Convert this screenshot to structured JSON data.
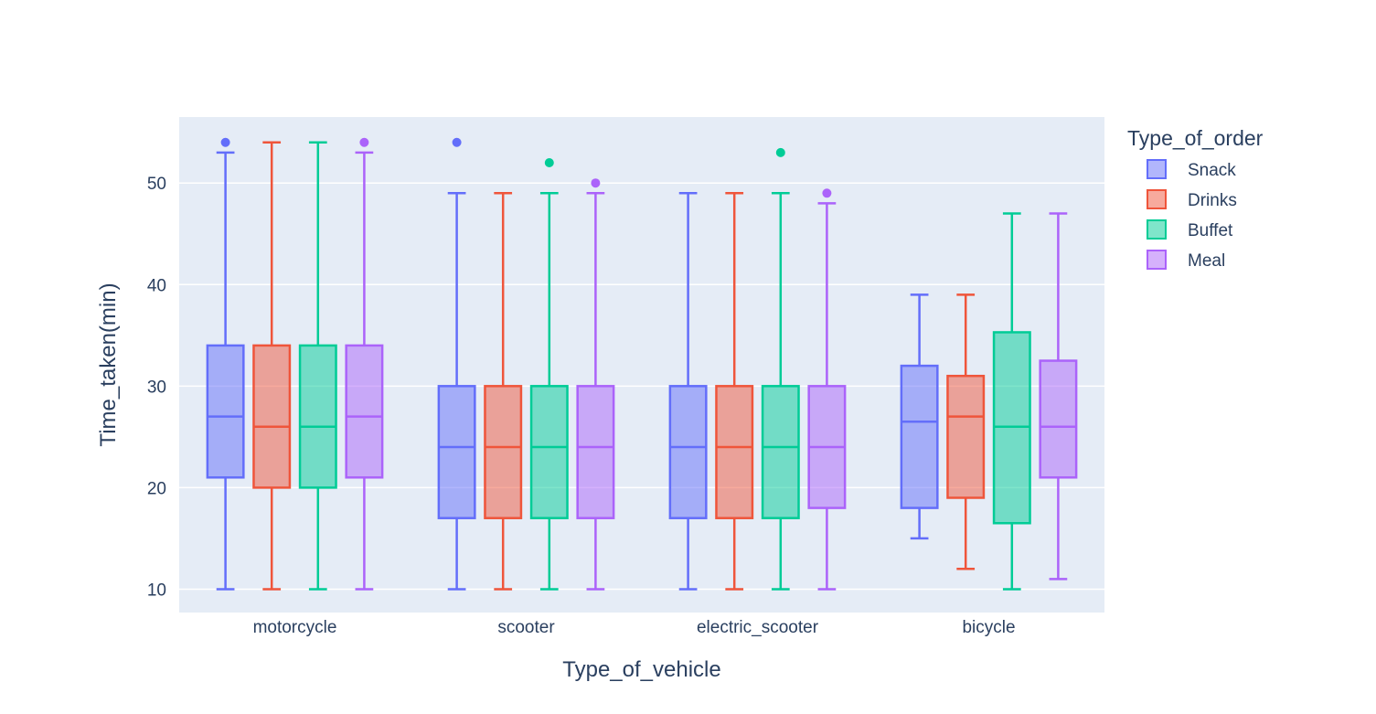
{
  "chart_data": {
    "type": "box",
    "xlabel": "Type_of_vehicle",
    "ylabel": "Time_taken(min)",
    "legend_title": "Type_of_order",
    "legend_position": "right",
    "categories": [
      "motorcycle",
      "scooter",
      "electric_scooter",
      "bicycle"
    ],
    "ylim": [
      7.7,
      56.5
    ],
    "yticks": [
      10,
      20,
      30,
      40,
      50
    ],
    "grid": true,
    "plot_background": "#e5ecf6",
    "series": [
      {
        "name": "Snack",
        "color": "#636efa",
        "fill": "rgba(99,110,250,0.5)",
        "boxes": [
          {
            "min": 10,
            "q1": 21,
            "median": 27,
            "q3": 34,
            "max": 53,
            "outliers": [
              54
            ]
          },
          {
            "min": 10,
            "q1": 17,
            "median": 24,
            "q3": 30,
            "max": 49,
            "outliers": [
              54
            ]
          },
          {
            "min": 10,
            "q1": 17,
            "median": 24,
            "q3": 30,
            "max": 49,
            "outliers": []
          },
          {
            "min": 15,
            "q1": 18,
            "median": 26.5,
            "q3": 32,
            "max": 39,
            "outliers": []
          }
        ]
      },
      {
        "name": "Drinks",
        "color": "#ef553b",
        "fill": "rgba(239,85,59,0.5)",
        "boxes": [
          {
            "min": 10,
            "q1": 20,
            "median": 26,
            "q3": 34,
            "max": 54,
            "outliers": []
          },
          {
            "min": 10,
            "q1": 17,
            "median": 24,
            "q3": 30,
            "max": 49,
            "outliers": []
          },
          {
            "min": 10,
            "q1": 17,
            "median": 24,
            "q3": 30,
            "max": 49,
            "outliers": []
          },
          {
            "min": 12,
            "q1": 19,
            "median": 27,
            "q3": 31,
            "max": 39,
            "outliers": []
          }
        ]
      },
      {
        "name": "Buffet",
        "color": "#00cc96",
        "fill": "rgba(0,204,150,0.5)",
        "boxes": [
          {
            "min": 10,
            "q1": 20,
            "median": 26,
            "q3": 34,
            "max": 54,
            "outliers": []
          },
          {
            "min": 10,
            "q1": 17,
            "median": 24,
            "q3": 30,
            "max": 49,
            "outliers": [
              52
            ]
          },
          {
            "min": 10,
            "q1": 17,
            "median": 24,
            "q3": 30,
            "max": 49,
            "outliers": [
              53
            ]
          },
          {
            "min": 10,
            "q1": 16.5,
            "median": 26,
            "q3": 35.3,
            "max": 47,
            "outliers": []
          }
        ]
      },
      {
        "name": "Meal",
        "color": "#ab63fa",
        "fill": "rgba(171,99,250,0.5)",
        "boxes": [
          {
            "min": 10,
            "q1": 21,
            "median": 27,
            "q3": 34,
            "max": 53,
            "outliers": [
              54
            ]
          },
          {
            "min": 10,
            "q1": 17,
            "median": 24,
            "q3": 30,
            "max": 49,
            "outliers": [
              50
            ]
          },
          {
            "min": 10,
            "q1": 18,
            "median": 24,
            "q3": 30,
            "max": 48,
            "outliers": [
              49
            ]
          },
          {
            "min": 11,
            "q1": 21,
            "median": 26,
            "q3": 32.5,
            "max": 47,
            "outliers": []
          }
        ]
      }
    ]
  }
}
